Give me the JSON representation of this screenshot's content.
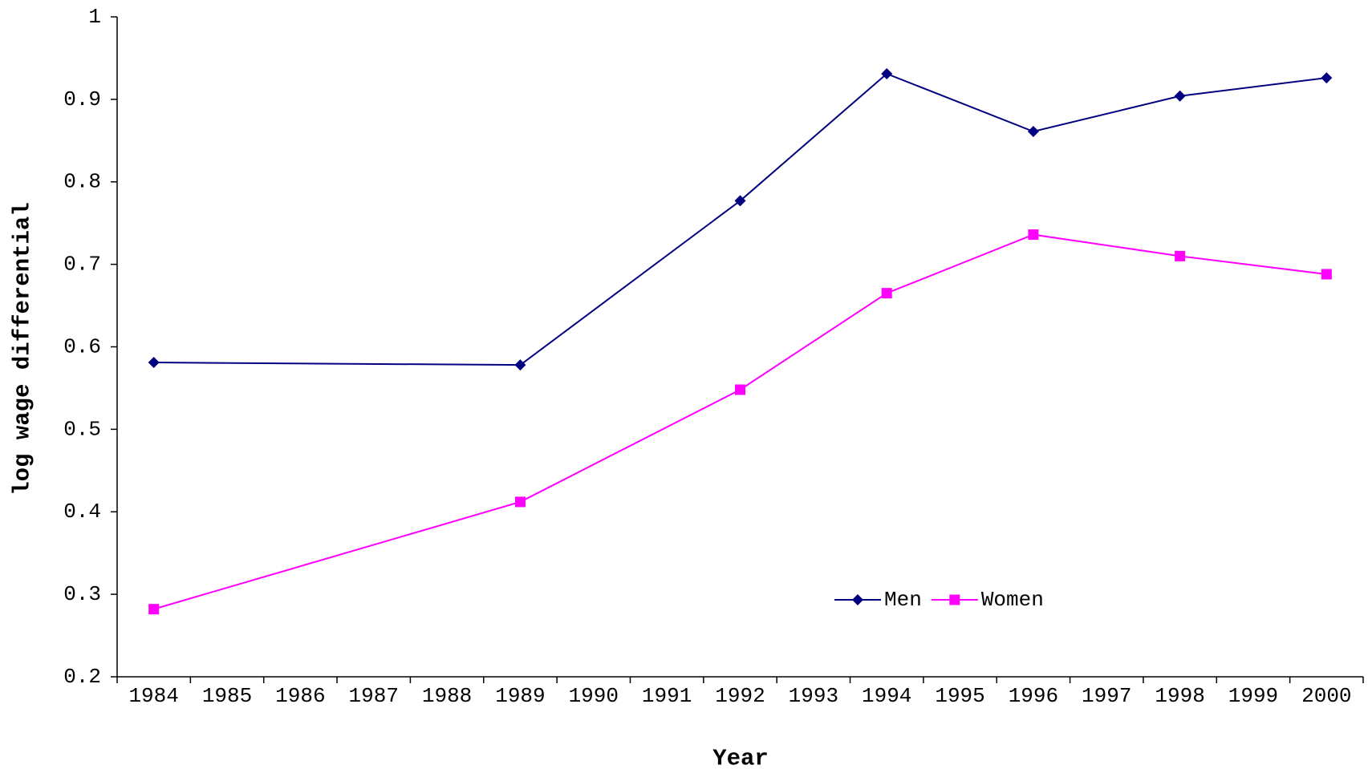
{
  "chart_data": {
    "type": "line",
    "x_label": "Year",
    "y_label": "log wage differential",
    "categories": [
      "1984",
      "1985",
      "1986",
      "1987",
      "1988",
      "1989",
      "1990",
      "1991",
      "1992",
      "1993",
      "1994",
      "1995",
      "1996",
      "1997",
      "1998",
      "1999",
      "2000"
    ],
    "x": [
      "1984",
      "1989",
      "1992",
      "1994",
      "1996",
      "1998",
      "2000"
    ],
    "series": [
      {
        "name": "Men",
        "color": "#000080",
        "marker": "diamond",
        "values": [
          0.581,
          0.578,
          0.777,
          0.931,
          0.861,
          0.904,
          0.926
        ]
      },
      {
        "name": "Women",
        "color": "#ff00ff",
        "marker": "square",
        "values": [
          0.282,
          0.412,
          0.548,
          0.665,
          0.736,
          0.71,
          0.688
        ]
      }
    ],
    "ylim": [
      0.2,
      1
    ],
    "yticks": [
      0.2,
      0.3,
      0.4,
      0.5,
      0.6,
      0.7,
      0.8,
      0.9,
      1
    ],
    "grid": false,
    "legend": "bottom-right"
  }
}
